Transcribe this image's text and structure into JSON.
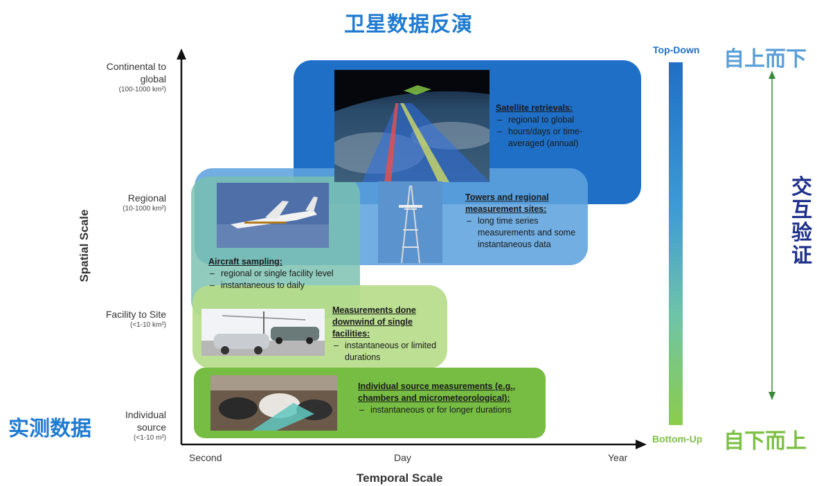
{
  "title": "卫星数据反演",
  "left_label": "实测数据",
  "y_axis": {
    "title": "Spatial Scale",
    "ticks": [
      {
        "label": "Continental to global",
        "sub": "(100-1000 km²)"
      },
      {
        "label": "Regional",
        "sub": "(10-1000 km²)"
      },
      {
        "label": "Facility to Site",
        "sub": "(<1-10 km²)"
      },
      {
        "label": "Individual source",
        "sub": "(<1-10 m²)"
      }
    ]
  },
  "x_axis": {
    "title": "Temporal Scale",
    "ticks": [
      "Second",
      "Day",
      "Year"
    ]
  },
  "boxes": [
    {
      "heading": "Satellite retrievals:",
      "items": [
        "regional to global",
        "hours/days or time-averaged (annual)"
      ],
      "color": "#1f6fc6"
    },
    {
      "heading": "Towers and regional measurement sites:",
      "items": [
        "long time series measurements and some instantaneous data"
      ],
      "color": "#5fa3dd"
    },
    {
      "heading": "Aircraft sampling:",
      "items": [
        "regional or single facility level",
        "instantaneous to daily"
      ],
      "color": "#79bfae"
    },
    {
      "heading": "Measurements done downwind of single facilities:",
      "items": [
        "instantaneous or limited durations"
      ],
      "color": "#b6dc8a"
    },
    {
      "heading": "Individual source measurements (e.g., chambers and micrometeorological):",
      "items": [
        "instantaneous or for longer durations"
      ],
      "color": "#77bd43"
    }
  ],
  "right_panel": {
    "top_en": "Top-Down",
    "top_cn": "自上而下",
    "bottom_en": "Bottom-Up",
    "bottom_cn": "自下而上",
    "middle_cn": "交互验证",
    "colors": {
      "top": "#1f6fc6",
      "bottom": "#8ccc4a",
      "arrow": "#3a8a3a",
      "middle_text": "#1e2f8a"
    }
  }
}
